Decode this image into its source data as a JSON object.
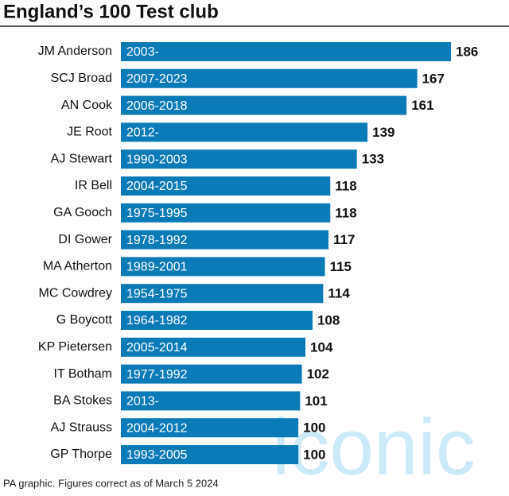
{
  "chart_data": {
    "type": "hbar",
    "title": "England’s 100 Test club",
    "categories": [
      "JM Anderson",
      "SCJ Broad",
      "AN Cook",
      "JE Root",
      "AJ Stewart",
      "IR Bell",
      "GA Gooch",
      "DI Gower",
      "MA Atherton",
      "MC Cowdrey",
      "G Boycott",
      "KP Pietersen",
      "IT Botham",
      "BA Stokes",
      "AJ Strauss",
      "GP Thorpe"
    ],
    "values": [
      186,
      167,
      161,
      139,
      133,
      118,
      118,
      117,
      115,
      114,
      108,
      104,
      102,
      101,
      100,
      100
    ],
    "bar_labels": [
      "2003-",
      "2007-2023",
      "2006-2018",
      "2012-",
      "1990-2003",
      "2004-2015",
      "1975-1995",
      "1978-1992",
      "1989-2001",
      "1954-1975",
      "1964-1982",
      "2005-2014",
      "1977-1992",
      "2013-",
      "2004-2012",
      "1993-2005"
    ],
    "color": "#0b7bb8",
    "footnote": "PA graphic. Figures correct as of March 5 2024",
    "watermark": "iconic"
  }
}
